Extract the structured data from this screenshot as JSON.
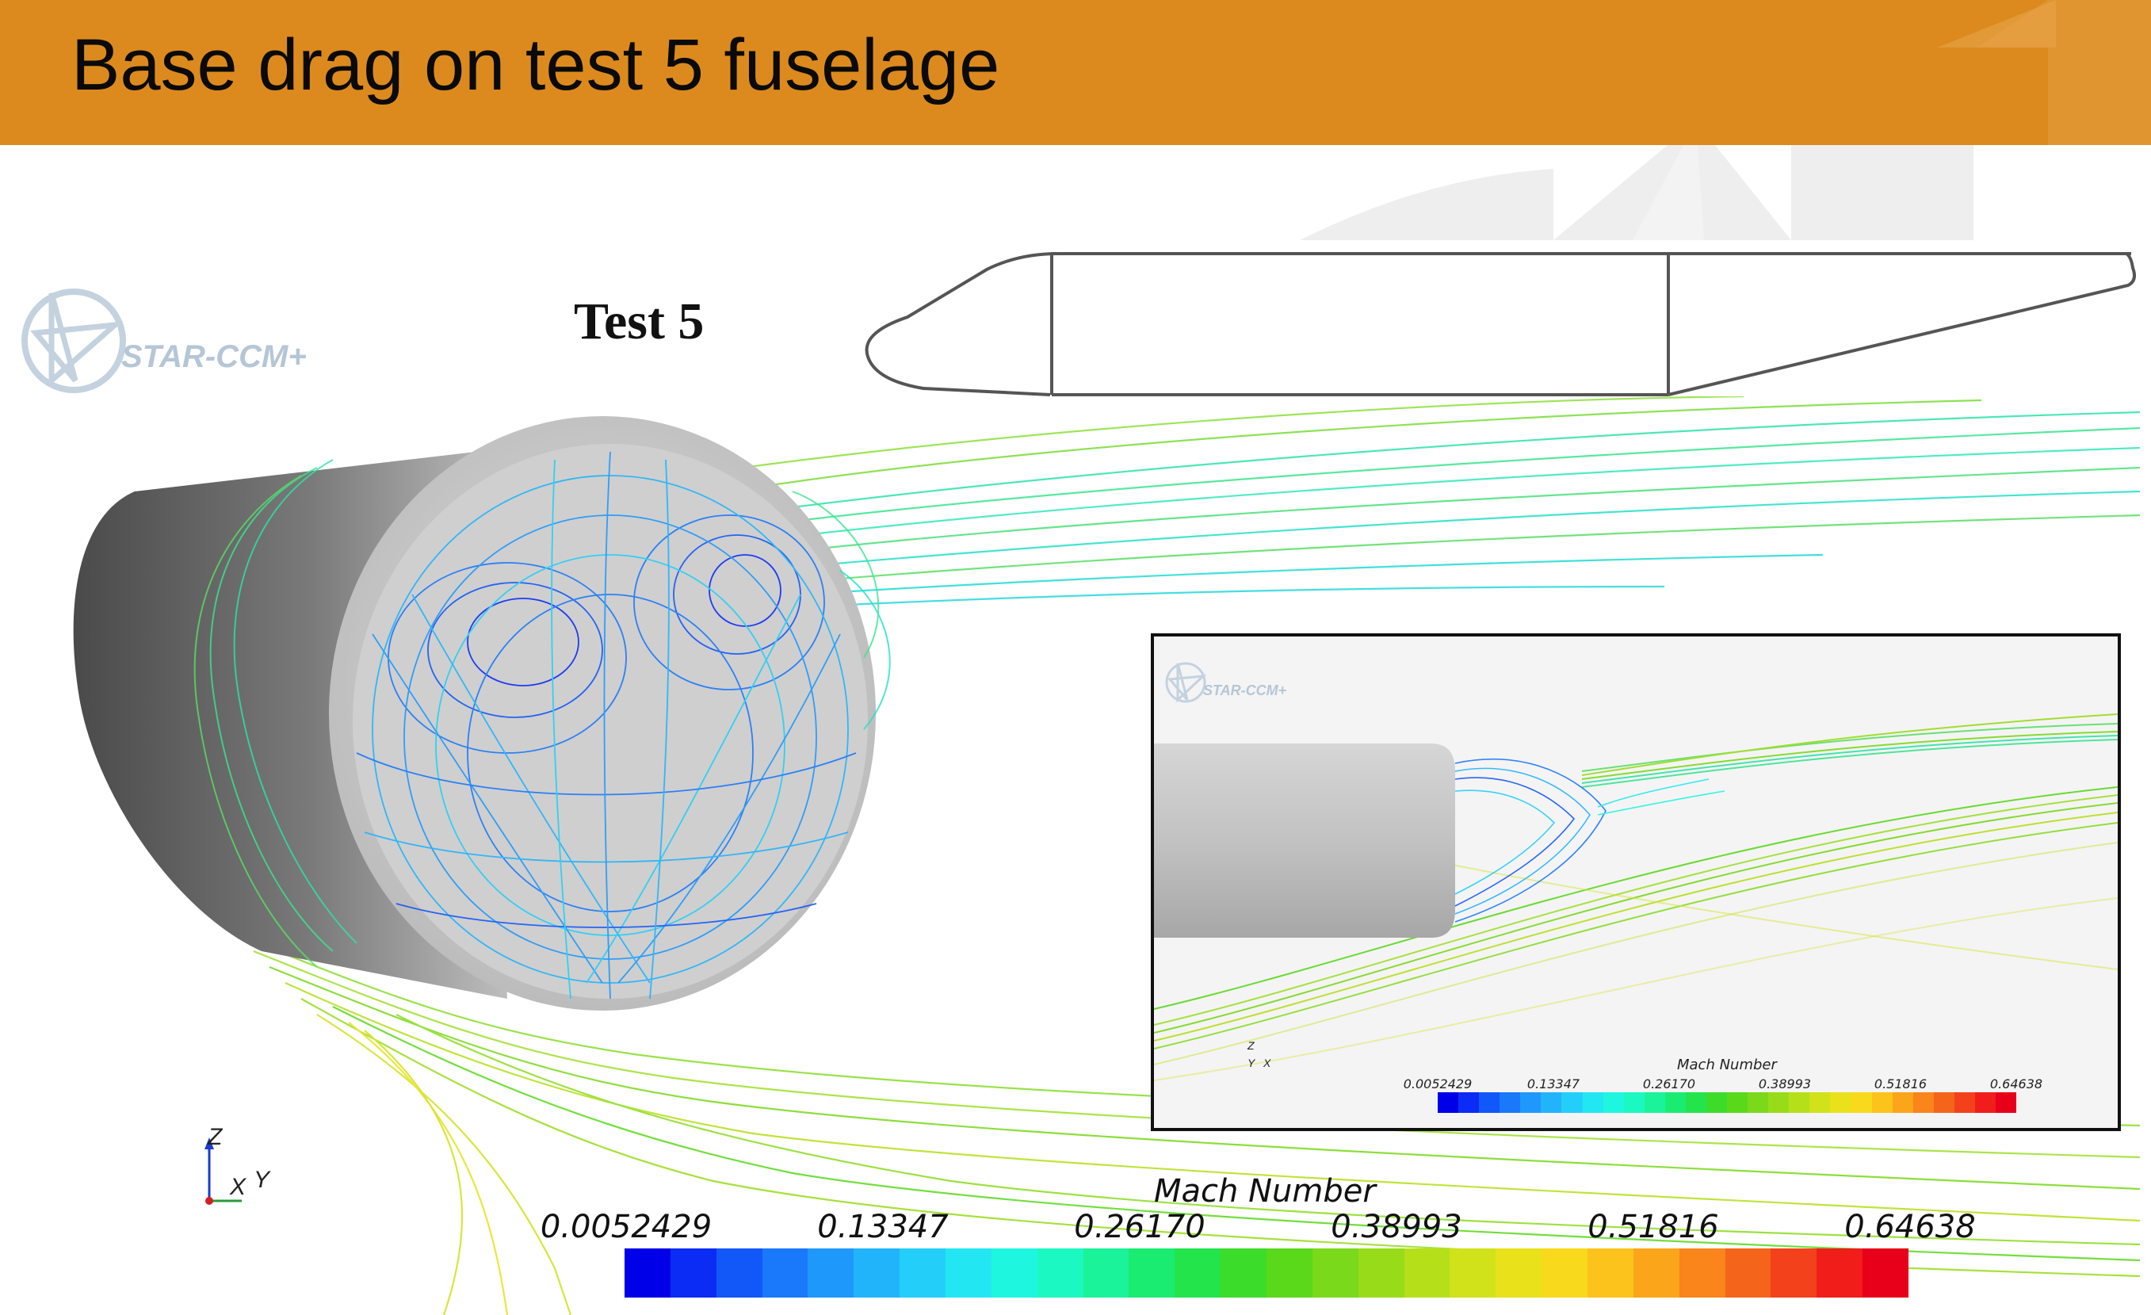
{
  "header": {
    "title": "Base drag on test 5 fuselage",
    "background_color": "#dc8a1d"
  },
  "schematic": {
    "label": "Test 5"
  },
  "logo": {
    "text": "STAR-CCM+"
  },
  "main_view": {
    "axes": {
      "z": "Z",
      "x": "X",
      "y": "Y"
    },
    "legend": {
      "title": "Mach Number",
      "ticks": [
        "0.0052429",
        "0.13347",
        "0.26170",
        "0.38993",
        "0.51816",
        "0.64638"
      ],
      "colors": [
        "#0000e8",
        "#0a2cf5",
        "#1258f8",
        "#1a78fa",
        "#1f98fb",
        "#22b4fb",
        "#23cff8",
        "#22e7f2",
        "#1ff6e0",
        "#1cf8c1",
        "#1af39a",
        "#1aec72",
        "#24e44c",
        "#3cdc2a",
        "#5ad91b",
        "#7ad91a",
        "#98dc19",
        "#b5e019",
        "#d1e21a",
        "#e9e21a",
        "#f8d91b",
        "#fbc31b",
        "#fba51b",
        "#f9851b",
        "#f5641b",
        "#f3411b",
        "#f01d1b",
        "#e8001a"
      ]
    }
  },
  "inset_view": {
    "logo_text": "STAR-CCM+",
    "axes": {
      "z": "Z",
      "x": "X",
      "y": "Y"
    },
    "legend": {
      "title": "Mach Number",
      "ticks": [
        "0.0052429",
        "0.13347",
        "0.26170",
        "0.38993",
        "0.51816",
        "0.64638"
      ]
    }
  }
}
